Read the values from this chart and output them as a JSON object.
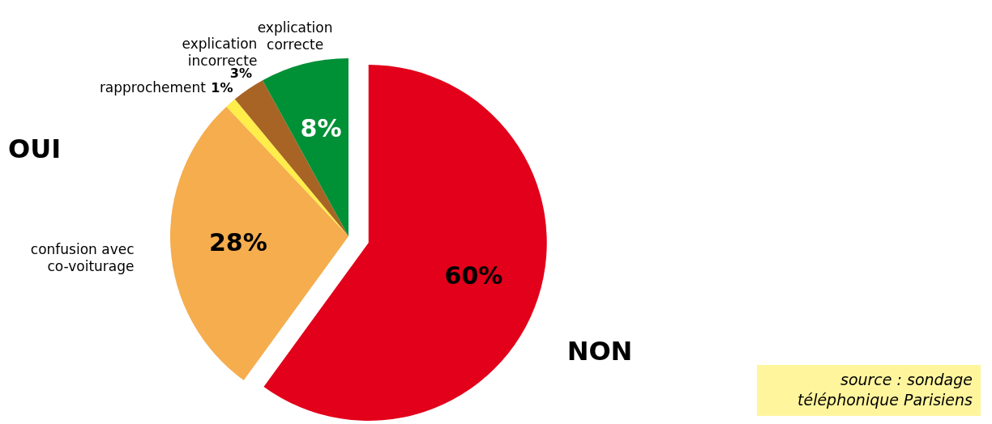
{
  "chart_data": {
    "type": "pie",
    "categories": [
      null,
      "confusion avec co-voiturage",
      "rapprochement",
      "explication incorrecte",
      "explication correcte"
    ],
    "values": [
      60,
      28,
      1,
      3,
      8
    ],
    "colors": [
      "#e2001a",
      "#f5ad4e",
      "#ffed4a",
      "#a86424",
      "#009036"
    ],
    "value_labels": [
      "60%",
      "28%",
      "1%",
      "3%",
      "8%"
    ],
    "annotations": [
      "OUI",
      "NON",
      "source : sondage téléphonique Parisiens"
    ]
  }
}
